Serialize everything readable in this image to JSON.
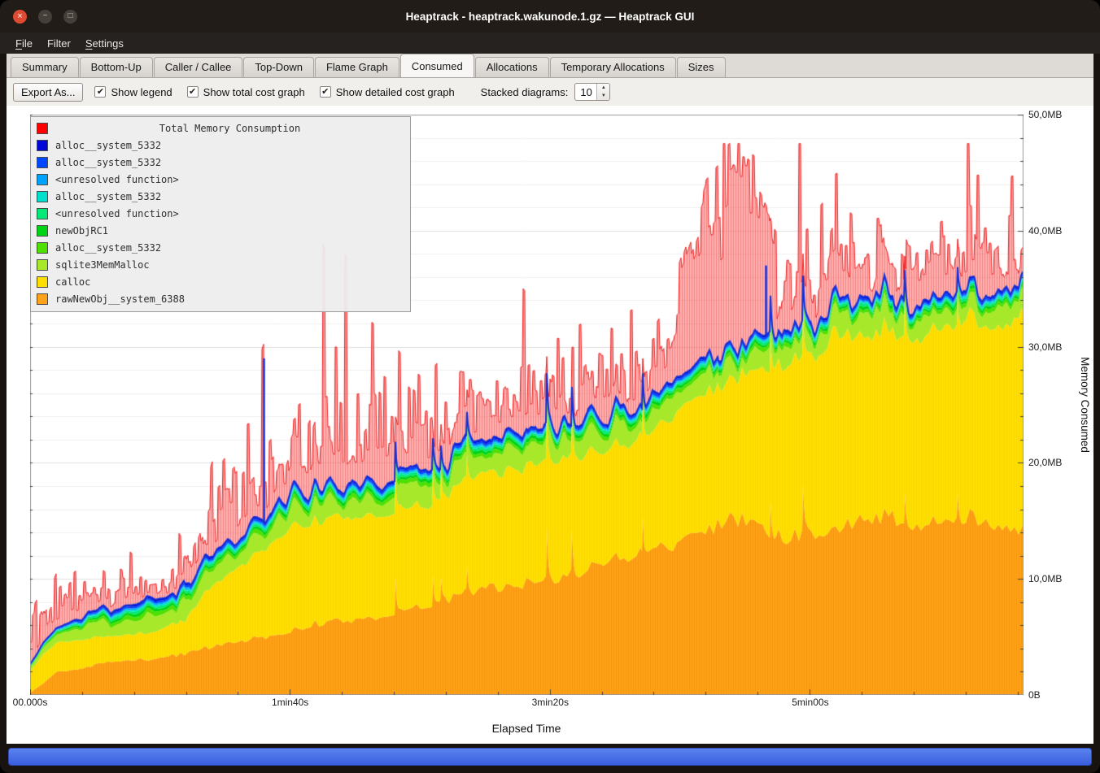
{
  "window": {
    "title": "Heaptrack - heaptrack.wakunode.1.gz — Heaptrack GUI"
  },
  "menu": {
    "items": [
      {
        "label": "File",
        "underline": 0
      },
      {
        "label": "Filter"
      },
      {
        "label": "Settings",
        "underline": 0
      }
    ]
  },
  "tabs": {
    "items": [
      "Summary",
      "Bottom-Up",
      "Caller / Callee",
      "Top-Down",
      "Flame Graph",
      "Consumed",
      "Allocations",
      "Temporary Allocations",
      "Sizes"
    ],
    "active": "Consumed"
  },
  "toolbar": {
    "export_label": "Export As...",
    "checkboxes": [
      {
        "label": "Show legend",
        "checked": true
      },
      {
        "label": "Show total cost graph",
        "checked": true
      },
      {
        "label": "Show detailed cost graph",
        "checked": true
      }
    ],
    "stacked_label": "Stacked diagrams:",
    "stacked_value": "10"
  },
  "chart_data": {
    "type": "area",
    "title": "Total Memory Consumption",
    "xlabel": "Elapsed Time",
    "ylabel": "Memory Consumed",
    "x_range": [
      0,
      382
    ],
    "y_range": [
      0,
      50
    ],
    "x_major_step": 100,
    "x_minor_step": 20,
    "y_major_step": 10,
    "y_minor_step": 2,
    "x_ticks": [
      {
        "t": 0,
        "label": "00.000s"
      },
      {
        "t": 100,
        "label": "1min40s"
      },
      {
        "t": 200,
        "label": "3min20s"
      },
      {
        "t": 300,
        "label": "5min00s"
      }
    ],
    "y_ticks": [
      {
        "v": 0,
        "label": "0B"
      },
      {
        "v": 10,
        "label": "10,0MB"
      },
      {
        "v": 20,
        "label": "20,0MB"
      },
      {
        "v": 30,
        "label": "30,0MB"
      },
      {
        "v": 40,
        "label": "40,0MB"
      },
      {
        "v": 50,
        "label": "50,0MB"
      }
    ],
    "keypoints_t": [
      0,
      5,
      10,
      20,
      30,
      40,
      50,
      60,
      70,
      80,
      90,
      100,
      110,
      120,
      130,
      140,
      150,
      160,
      170,
      180,
      190,
      200,
      210,
      220,
      230,
      240,
      250,
      260,
      270,
      280,
      290,
      300,
      310,
      320,
      330,
      340,
      350,
      360,
      370,
      380,
      385
    ],
    "layers": [
      {
        "name": "rawNewObj__system_6388",
        "color": "#ffa216",
        "hatch": "rgba(226,125,0,0.30)",
        "jitter": 0.05,
        "noise_step": 5,
        "spike_prob": 0.012,
        "spike_amp": 3.8,
        "spike_from_t": 130,
        "values": [
          0.2,
          1.0,
          2.0,
          2.3,
          2.8,
          3.0,
          3.2,
          3.6,
          4.2,
          4.6,
          5.0,
          5.5,
          6.2,
          6.4,
          6.6,
          7.0,
          7.6,
          8.2,
          9.0,
          9.3,
          9.6,
          10.0,
          10.5,
          11.5,
          12.0,
          12.5,
          13.0,
          14.0,
          15.5,
          14.5,
          13.5,
          14.0,
          14.5,
          15.0,
          15.5,
          14.5,
          15.0,
          15.5,
          15.0,
          14.5,
          14.2
        ]
      },
      {
        "name": "calloc",
        "color": "#ffdf00",
        "hatch": "rgba(230,188,0,0.22)",
        "jitter": 0.03,
        "noise_step": 7,
        "values": [
          1.8,
          2.5,
          2.5,
          2.5,
          2.2,
          2.2,
          2.4,
          2.9,
          5.3,
          6.4,
          7.5,
          9.0,
          8.8,
          8.8,
          8.8,
          8.8,
          8.7,
          8.8,
          9.8,
          9.9,
          10.0,
          10.3,
          10.3,
          9.7,
          9.6,
          10.0,
          11.5,
          12.0,
          12.0,
          13.5,
          15.0,
          15.0,
          17.0,
          16.0,
          16.0,
          16.0,
          16.5,
          17.0,
          17.0,
          18.5,
          18.8
        ]
      },
      {
        "name": "sqlite3MemMalloc",
        "color": "#a8e82a",
        "thickness": 1.5,
        "jitter": 0.5,
        "noise_step": 9
      },
      {
        "name": "alloc__system_5332",
        "color": "#50e000",
        "thickness": 0.32,
        "jitter": 0.3,
        "noise_step": 8
      },
      {
        "name": "newObjRC1",
        "color": "#00d414",
        "thickness": 0.26,
        "jitter": 0.3,
        "noise_step": 8
      },
      {
        "name": "<unresolved function>",
        "color": "#00ea78",
        "thickness": 0.2,
        "jitter": 0.3,
        "noise_step": 8
      },
      {
        "name": "alloc__system_5332",
        "color": "#00e0cc",
        "thickness": 0.14,
        "jitter": 0.25,
        "noise_step": 8
      },
      {
        "name": "<unresolved function>",
        "color": "#00a2ff",
        "thickness": 0.13,
        "jitter": 0.2,
        "noise_step": 8
      },
      {
        "name": "alloc__system_5332",
        "color": "#0048ff",
        "thickness": 0.16,
        "jitter": 0.2,
        "noise_step": 8
      },
      {
        "name": "alloc__system_5332",
        "color": "#0008d8",
        "thickness": 0.16,
        "jitter": 0.2,
        "noise_step": 8
      }
    ],
    "total": {
      "name": "Total Memory Consumption",
      "color": "#ee2222",
      "fill": "rgba(255,96,96,0.50)",
      "hatch": "rgba(218,42,42,0.33)",
      "dense_regions": [
        [
          249,
          265
        ],
        [
          267,
          287
        ]
      ],
      "values": [
        6,
        8,
        11,
        13,
        11,
        10,
        10.5,
        12,
        18,
        21,
        23,
        26,
        29,
        28,
        30,
        28,
        26,
        27,
        28,
        28,
        29,
        30,
        30,
        31,
        31,
        32,
        36,
        42,
        45,
        44,
        40,
        41,
        43,
        42,
        43,
        42,
        43,
        44,
        43,
        44,
        44
      ]
    },
    "line_color": "#1430d8",
    "blue_spikes": [
      {
        "t": 90,
        "v": 29
      },
      {
        "t": 283,
        "v": 37
      }
    ],
    "legend": {
      "title": "Total Memory Consumption",
      "title_color": "#ff0000",
      "items": [
        {
          "label": "alloc__system_5332",
          "color": "#0008d8"
        },
        {
          "label": "alloc__system_5332",
          "color": "#0048ff"
        },
        {
          "label": "<unresolved function>",
          "color": "#00a2ff"
        },
        {
          "label": "alloc__system_5332",
          "color": "#00e0cc"
        },
        {
          "label": "<unresolved function>",
          "color": "#00ea78"
        },
        {
          "label": "newObjRC1",
          "color": "#00d414"
        },
        {
          "label": "alloc__system_5332",
          "color": "#50e000"
        },
        {
          "label": "sqlite3MemMalloc",
          "color": "#a8e82a"
        },
        {
          "label": "calloc",
          "color": "#ffdf00"
        },
        {
          "label": "rawNewObj__system_6388",
          "color": "#ffa216"
        }
      ]
    }
  }
}
